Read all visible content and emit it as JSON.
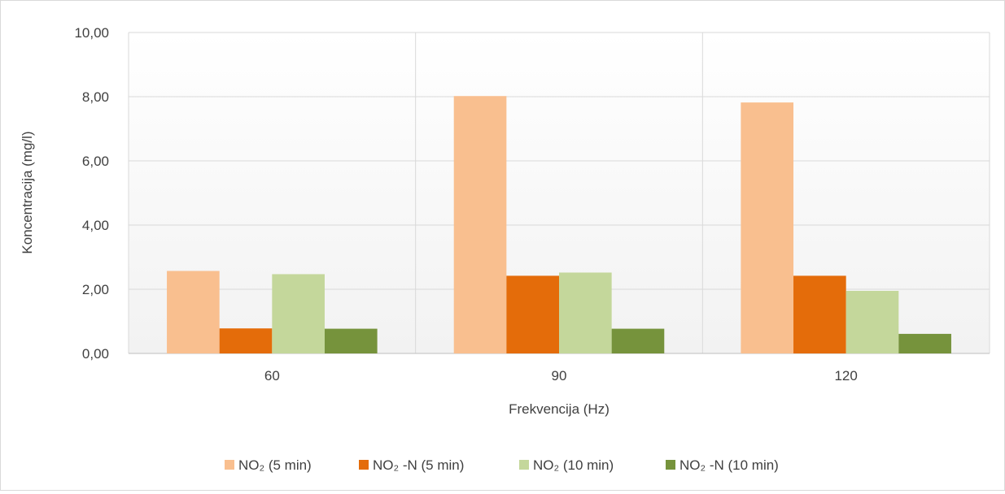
{
  "chart_data": {
    "type": "bar",
    "title": "",
    "xlabel": "Frekvencija (Hz)",
    "ylabel": "Koncentracija (mg/l)",
    "categories": [
      "60",
      "90",
      "120"
    ],
    "ylim": [
      0,
      10
    ],
    "yticks": [
      "0,00",
      "2,00",
      "4,00",
      "6,00",
      "8,00",
      "10,00"
    ],
    "ytick_values": [
      0,
      2,
      4,
      6,
      8,
      10
    ],
    "grid": true,
    "legend_position": "bottom",
    "series": [
      {
        "name": "NO₂ (5 min)",
        "values": [
          2.57,
          8.02,
          7.82
        ],
        "color": "#f9bf8f"
      },
      {
        "name": "NO₂ -N (5 min)",
        "values": [
          0.78,
          2.42,
          2.42
        ],
        "color": "#e46c0a"
      },
      {
        "name": "NO₂ (10 min)",
        "values": [
          2.47,
          2.52,
          1.95
        ],
        "color": "#c4d79b"
      },
      {
        "name": "NO₂ -N (10 min)",
        "values": [
          0.77,
          0.77,
          0.61
        ],
        "color": "#76933c"
      }
    ]
  }
}
